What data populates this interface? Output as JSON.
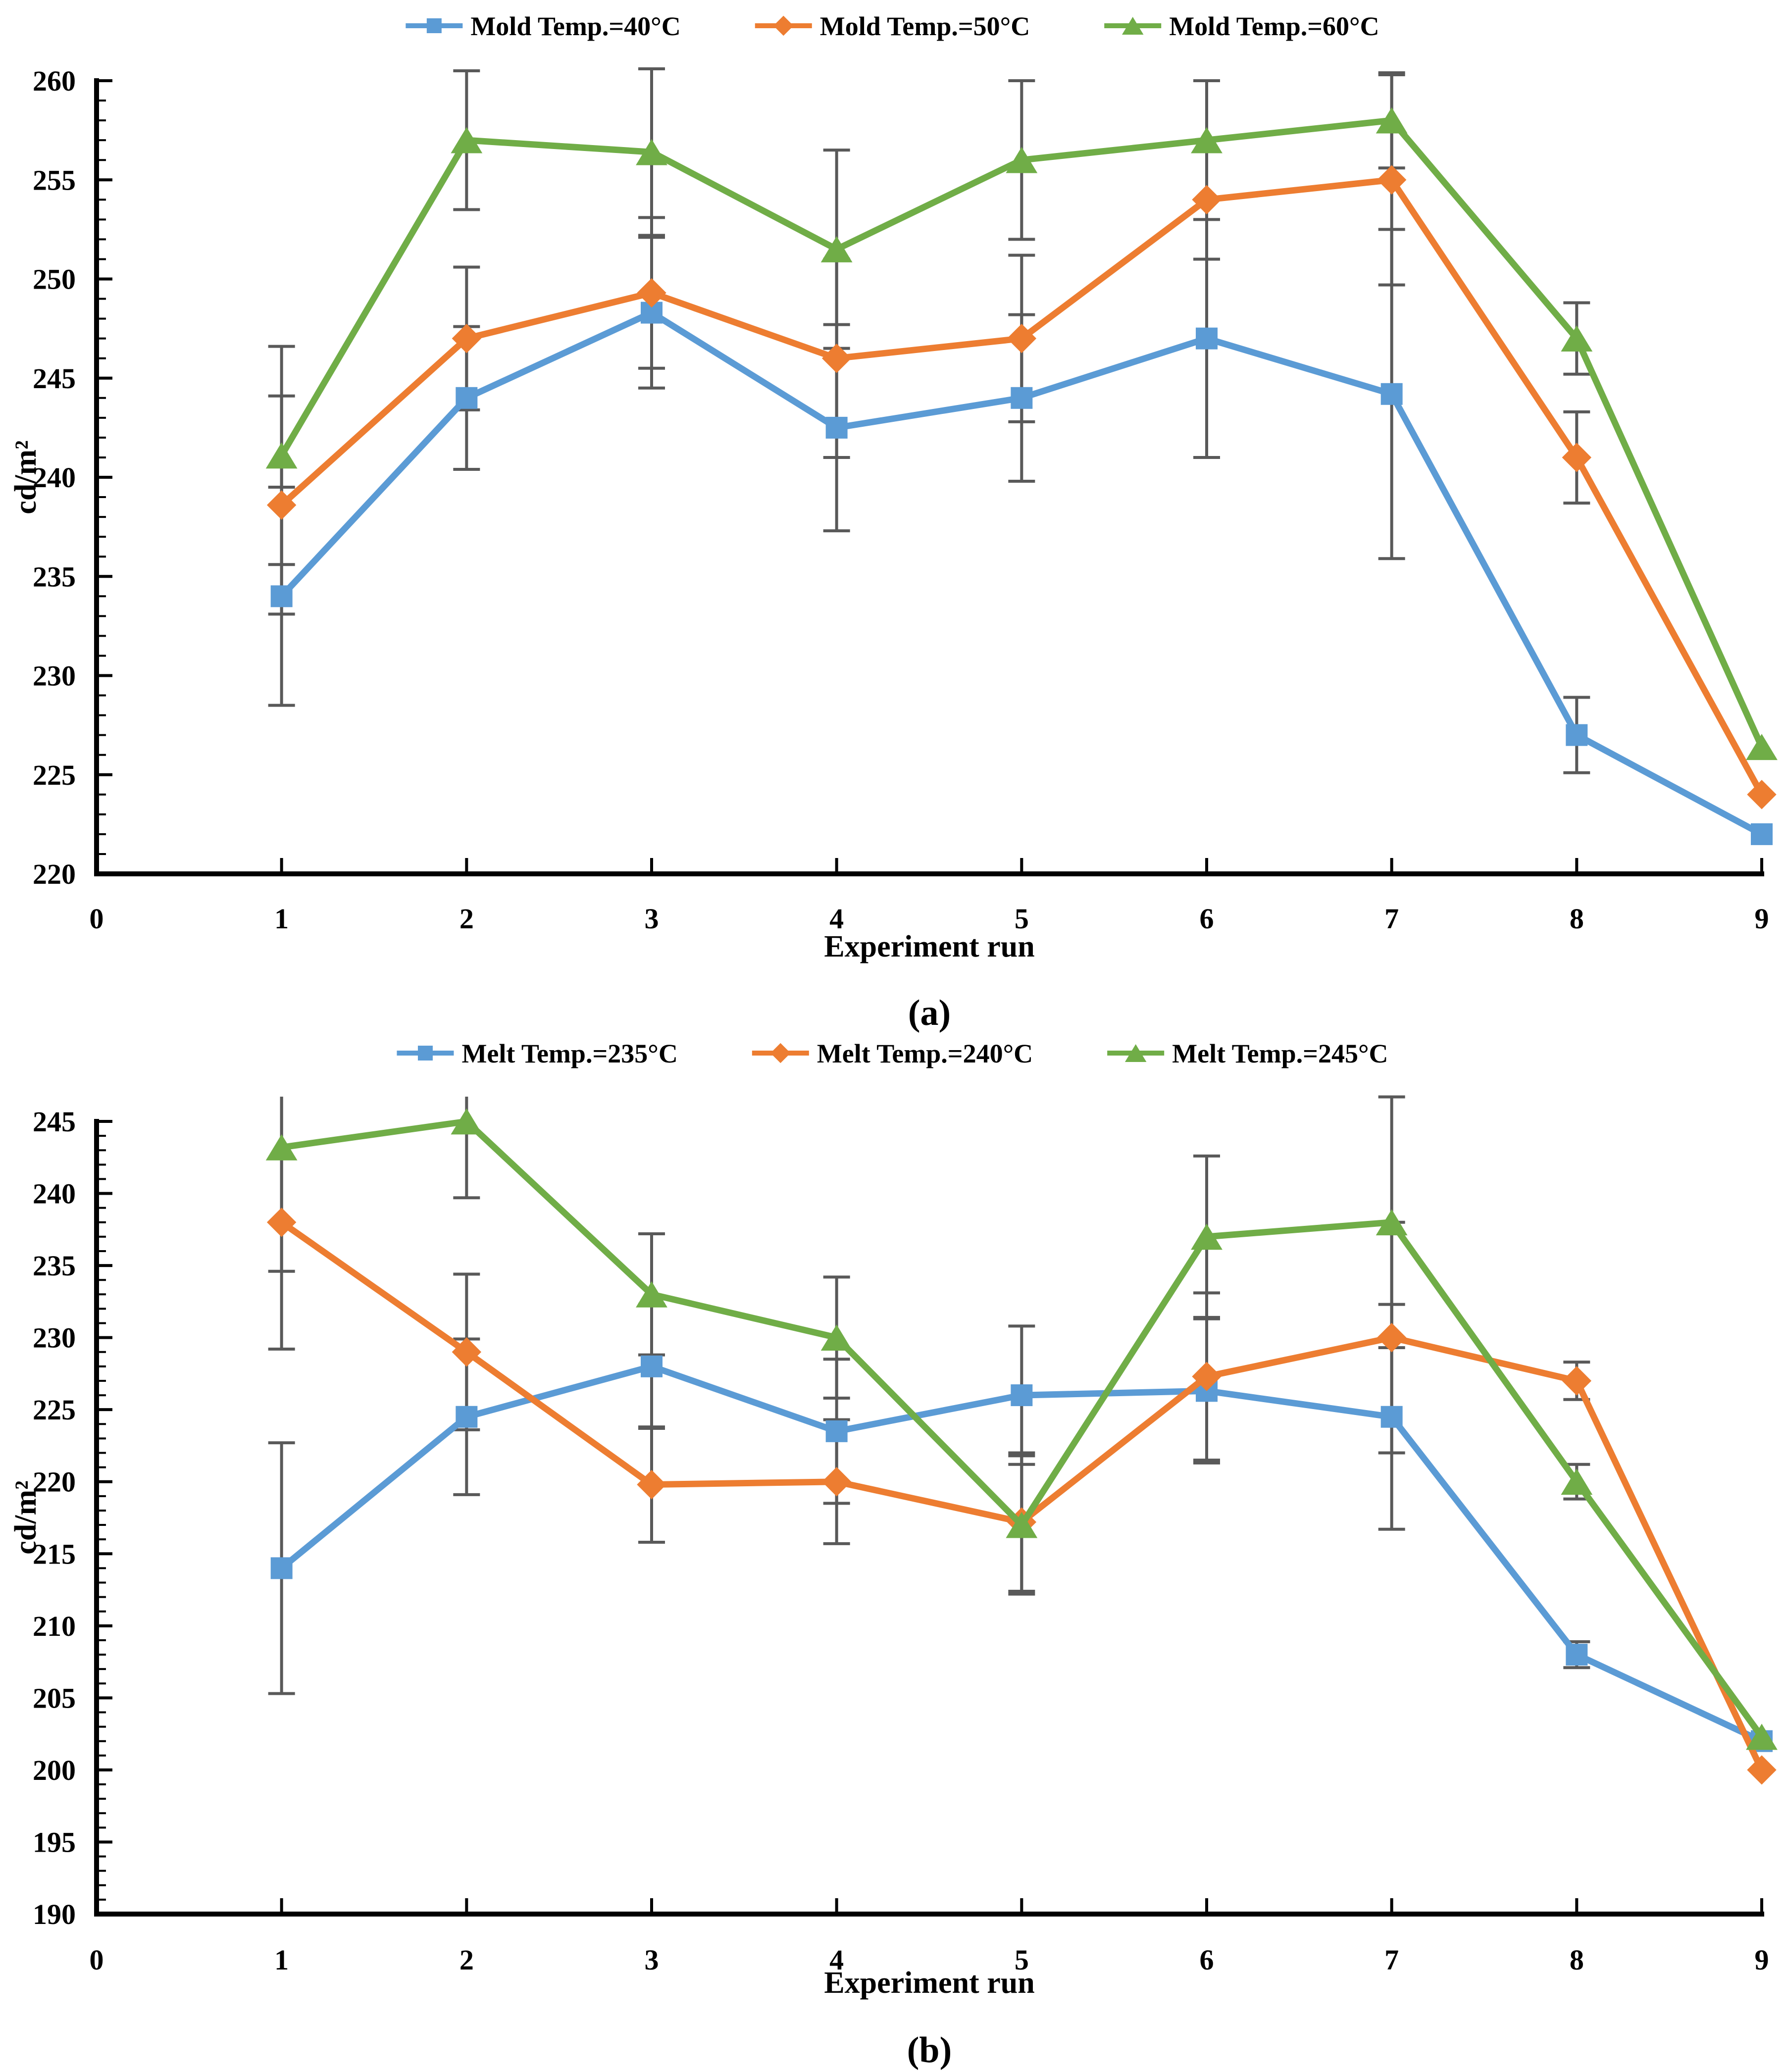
{
  "figure": {
    "background": "#ffffff",
    "captions": {
      "a": "(a)",
      "b": "(b)"
    }
  },
  "style": {
    "axis_color": "#000000",
    "error_bar_color": "#595959",
    "series_colors": {
      "blue": "#5B9BD5",
      "orange": "#ED7D31",
      "green": "#70AD47"
    }
  },
  "chart_data": [
    {
      "type": "line",
      "caption": "(a)",
      "xlabel": "Experiment run",
      "ylabel": "cd/m²",
      "x": [
        1,
        2,
        3,
        4,
        5,
        6,
        7,
        8,
        9
      ],
      "x_tick_labels": [
        "0",
        "1",
        "2",
        "3",
        "4",
        "5",
        "6",
        "7",
        "8",
        "9"
      ],
      "xlim": [
        0,
        9
      ],
      "ylim": [
        220,
        260
      ],
      "ytick_step": 5,
      "yminor_step": 1,
      "grid": false,
      "legend_position": "top-center",
      "series": [
        {
          "name": "Mold Temp.=40°C",
          "color": "#5B9BD5",
          "marker": "square",
          "values": [
            234,
            244,
            248.3,
            242.5,
            244,
            247,
            244.2,
            227,
            222
          ],
          "errors": [
            5.5,
            3.6,
            3.8,
            5.2,
            4.2,
            6.0,
            8.3,
            1.9,
            0
          ]
        },
        {
          "name": "Mold Temp.=50°C",
          "color": "#ED7D31",
          "marker": "diamond",
          "values": [
            238.6,
            247,
            249.3,
            246,
            247,
            254,
            255,
            241,
            224
          ],
          "errors": [
            5.5,
            3.6,
            3.8,
            5.0,
            4.2,
            3.0,
            5.3,
            2.3,
            0
          ]
        },
        {
          "name": "Mold Temp.=60°C",
          "color": "#70AD47",
          "marker": "triangle",
          "values": [
            241.1,
            257,
            256.4,
            251.5,
            256,
            257,
            258,
            247,
            226.4
          ],
          "errors": [
            5.5,
            3.5,
            4.2,
            5.0,
            4.0,
            3.0,
            2.4,
            1.8,
            0
          ]
        }
      ]
    },
    {
      "type": "line",
      "caption": "(b)",
      "xlabel": "Experiment run",
      "ylabel": "cd/m²",
      "x": [
        1,
        2,
        3,
        4,
        5,
        6,
        7,
        8,
        9
      ],
      "x_tick_labels": [
        "0",
        "1",
        "2",
        "3",
        "4",
        "5",
        "6",
        "7",
        "8",
        "9"
      ],
      "xlim": [
        0,
        9
      ],
      "ylim": [
        190,
        245
      ],
      "ytick_step": 5,
      "yminor_step": 1,
      "grid": false,
      "legend_position": "top-center",
      "series": [
        {
          "name": "Melt Temp.=235°C",
          "color": "#5B9BD5",
          "marker": "square",
          "values": [
            214,
            224.5,
            228,
            223.5,
            226,
            226.3,
            224.5,
            208,
            202
          ],
          "errors": [
            8.7,
            5.4,
            4.3,
            5.0,
            4.8,
            5.0,
            7.8,
            0.9,
            0
          ]
        },
        {
          "name": "Melt Temp.=240°C",
          "color": "#ED7D31",
          "marker": "diamond",
          "values": [
            238,
            229,
            219.8,
            220,
            217.2,
            227.3,
            230,
            227,
            200
          ],
          "errors": [
            8.8,
            5.4,
            4.0,
            4.3,
            4.8,
            5.8,
            8.0,
            1.3,
            0
          ]
        },
        {
          "name": "Melt Temp.=245°C",
          "color": "#70AD47",
          "marker": "triangle",
          "values": [
            243.2,
            245,
            233,
            230,
            217,
            237,
            238,
            220,
            202.3
          ],
          "errors": [
            8.6,
            5.3,
            4.2,
            4.2,
            4.8,
            5.6,
            8.7,
            1.2,
            0
          ]
        }
      ]
    }
  ]
}
